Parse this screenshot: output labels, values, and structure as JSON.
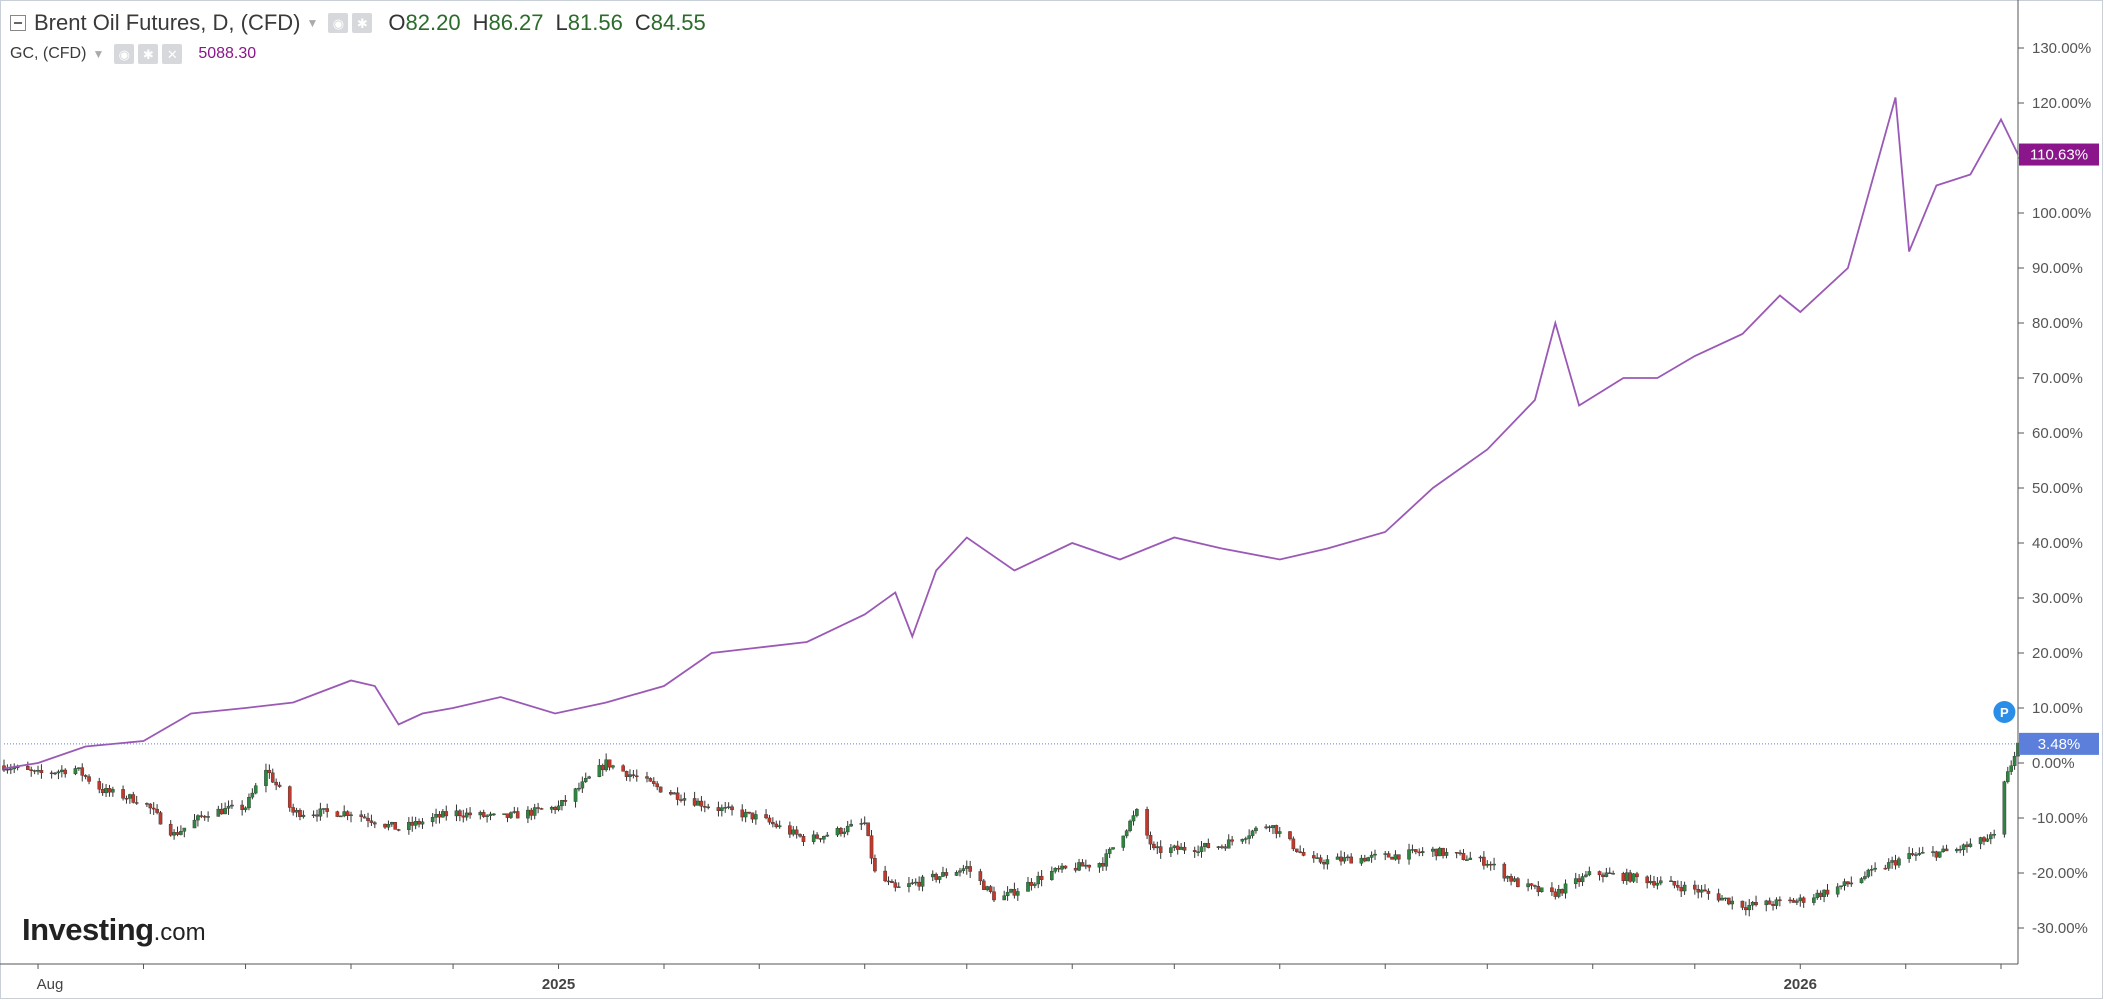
{
  "legend": {
    "main_title": "Brent Oil Futures, D, (CFD)",
    "ohlc": [
      {
        "label": "O",
        "value": "82.20"
      },
      {
        "label": "H",
        "value": "86.27"
      },
      {
        "label": "L",
        "value": "81.56"
      },
      {
        "label": "C",
        "value": "84.55"
      }
    ],
    "compare_title": "GC, (CFD)",
    "compare_value": "5088.30"
  },
  "brand": {
    "name": "Investing",
    "suffix": ".com"
  },
  "colors": {
    "compare_line": "#9b59b6",
    "compare_badge": "#8b168b",
    "candle_up": "#2e8540",
    "candle_down": "#c0392b",
    "last_line": "#5b7fdb",
    "axis_text": "#555555"
  },
  "chart_data": {
    "type": "line",
    "y_unit": "percent change",
    "ylim": [
      -35,
      140
    ],
    "y_ticks": [
      "130.00%",
      "120.00%",
      "110.00%",
      "100.00%",
      "90.00%",
      "80.00%",
      "70.00%",
      "60.00%",
      "50.00%",
      "40.00%",
      "30.00%",
      "20.00%",
      "10.00%",
      "0.00%",
      "-10.00%",
      "-20.00%",
      "-30.00%"
    ],
    "y_tick_values": [
      130,
      120,
      110,
      100,
      90,
      80,
      70,
      60,
      50,
      40,
      30,
      20,
      10,
      0,
      -10,
      -20,
      -30
    ],
    "x_range": [
      "2024-07-22",
      "2026-03-06"
    ],
    "x_labels": [
      {
        "date": "2024-08-01",
        "label": "Aug",
        "bold": false
      },
      {
        "date": "2025-01-01",
        "label": "2025",
        "bold": true
      },
      {
        "date": "2026-01-01",
        "label": "2026",
        "bold": true
      }
    ],
    "x_minor_ticks": [
      "2024-09-01",
      "2024-10-01",
      "2024-11-01",
      "2024-12-01",
      "2025-02-01",
      "2025-03-01",
      "2025-04-01",
      "2025-05-01",
      "2025-06-01",
      "2025-07-01",
      "2025-08-01",
      "2025-09-01",
      "2025-10-01",
      "2025-11-01",
      "2025-12-01",
      "2026-02-01",
      "2026-03-01"
    ],
    "series": [
      {
        "name": "GC, (CFD)",
        "style": "line",
        "last_label": "110.63%",
        "points": [
          [
            "2024-07-22",
            -1
          ],
          [
            "2024-08-01",
            0
          ],
          [
            "2024-08-15",
            3
          ],
          [
            "2024-09-01",
            4
          ],
          [
            "2024-09-15",
            9
          ],
          [
            "2024-10-01",
            10
          ],
          [
            "2024-10-15",
            11
          ],
          [
            "2024-11-01",
            15
          ],
          [
            "2024-11-08",
            14
          ],
          [
            "2024-11-15",
            7
          ],
          [
            "2024-11-22",
            9
          ],
          [
            "2024-12-01",
            10
          ],
          [
            "2024-12-15",
            12
          ],
          [
            "2024-12-31",
            9
          ],
          [
            "2025-01-15",
            11
          ],
          [
            "2025-02-01",
            14
          ],
          [
            "2025-02-15",
            20
          ],
          [
            "2025-03-01",
            21
          ],
          [
            "2025-03-15",
            22
          ],
          [
            "2025-04-01",
            27
          ],
          [
            "2025-04-10",
            31
          ],
          [
            "2025-04-15",
            23
          ],
          [
            "2025-04-22",
            35
          ],
          [
            "2025-05-01",
            41
          ],
          [
            "2025-05-15",
            35
          ],
          [
            "2025-06-01",
            40
          ],
          [
            "2025-06-15",
            37
          ],
          [
            "2025-07-01",
            41
          ],
          [
            "2025-07-15",
            39
          ],
          [
            "2025-08-01",
            37
          ],
          [
            "2025-08-15",
            39
          ],
          [
            "2025-09-01",
            42
          ],
          [
            "2025-09-15",
            50
          ],
          [
            "2025-10-01",
            57
          ],
          [
            "2025-10-15",
            66
          ],
          [
            "2025-10-21",
            80
          ],
          [
            "2025-10-28",
            65
          ],
          [
            "2025-11-10",
            70
          ],
          [
            "2025-11-20",
            70
          ],
          [
            "2025-12-01",
            74
          ],
          [
            "2025-12-15",
            78
          ],
          [
            "2025-12-26",
            85
          ],
          [
            "2026-01-01",
            82
          ],
          [
            "2026-01-15",
            90
          ],
          [
            "2026-01-29",
            121
          ],
          [
            "2026-02-02",
            93
          ],
          [
            "2026-02-10",
            105
          ],
          [
            "2026-02-20",
            107
          ],
          [
            "2026-03-01",
            117
          ],
          [
            "2026-03-06",
            110.63
          ]
        ]
      },
      {
        "name": "Brent Oil Futures, D, (CFD)",
        "style": "candlestick",
        "last_label": "3.48%",
        "points": [
          [
            "2024-07-22",
            -0.5
          ],
          [
            "2024-08-01",
            -2
          ],
          [
            "2024-08-12",
            -1
          ],
          [
            "2024-08-20",
            -5
          ],
          [
            "2024-09-01",
            -7
          ],
          [
            "2024-09-10",
            -13
          ],
          [
            "2024-09-20",
            -9
          ],
          [
            "2024-10-01",
            -8
          ],
          [
            "2024-10-07",
            -1
          ],
          [
            "2024-10-15",
            -9
          ],
          [
            "2024-11-01",
            -9
          ],
          [
            "2024-11-15",
            -12
          ],
          [
            "2024-12-01",
            -9
          ],
          [
            "2024-12-15",
            -10
          ],
          [
            "2025-01-01",
            -8
          ],
          [
            "2025-01-15",
            0
          ],
          [
            "2025-02-01",
            -5
          ],
          [
            "2025-02-15",
            -8
          ],
          [
            "2025-03-01",
            -10
          ],
          [
            "2025-03-15",
            -14
          ],
          [
            "2025-04-01",
            -11
          ],
          [
            "2025-04-04",
            -20
          ],
          [
            "2025-04-10",
            -23
          ],
          [
            "2025-05-01",
            -19
          ],
          [
            "2025-05-10",
            -25
          ],
          [
            "2025-05-25",
            -20
          ],
          [
            "2025-06-10",
            -18
          ],
          [
            "2025-06-20",
            -9
          ],
          [
            "2025-06-25",
            -16
          ],
          [
            "2025-07-15",
            -15
          ],
          [
            "2025-07-29",
            -11
          ],
          [
            "2025-08-10",
            -18
          ],
          [
            "2025-09-01",
            -17
          ],
          [
            "2025-09-15",
            -16
          ],
          [
            "2025-10-01",
            -18
          ],
          [
            "2025-10-10",
            -22
          ],
          [
            "2025-10-20",
            -24
          ],
          [
            "2025-11-01",
            -20
          ],
          [
            "2025-11-15",
            -21
          ],
          [
            "2025-12-01",
            -23
          ],
          [
            "2025-12-16",
            -26
          ],
          [
            "2026-01-01",
            -25
          ],
          [
            "2026-01-15",
            -22
          ],
          [
            "2026-02-01",
            -17
          ],
          [
            "2026-02-15",
            -16
          ],
          [
            "2026-03-01",
            -13
          ],
          [
            "2026-03-02",
            -4
          ],
          [
            "2026-03-06",
            3.48
          ]
        ]
      }
    ],
    "markers": [
      {
        "date": "2026-03-02",
        "value": 6,
        "label": "P"
      }
    ]
  }
}
